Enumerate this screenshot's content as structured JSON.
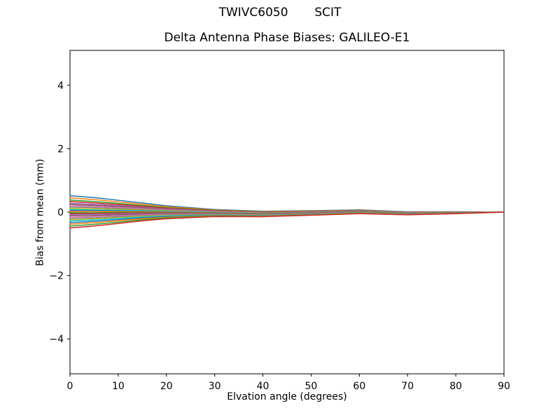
{
  "figure": {
    "suptitle": "TWIVC6050       SCIT",
    "axes_title": "Delta Antenna Phase Biases: GALILEO-E1",
    "xlabel": "Elvation angle (degrees)",
    "ylabel": "Bias from mean (mm)",
    "background_color": "#ffffff",
    "spine_color": "#000000",
    "text_color": "#000000"
  },
  "chart_data": {
    "type": "line",
    "title": "Delta Antenna Phase Biases: GALILEO-E1",
    "suptitle": "TWIVC6050       SCIT",
    "xlabel": "Elvation angle (degrees)",
    "ylabel": "Bias from mean (mm)",
    "xlim": [
      0,
      90
    ],
    "ylim": [
      -5.1,
      5.1
    ],
    "x_ticks": [
      0,
      10,
      20,
      30,
      40,
      50,
      60,
      70,
      80,
      90
    ],
    "y_ticks": [
      -4,
      -2,
      0,
      2,
      4
    ],
    "grid": false,
    "legend": "none",
    "line_width": 1.5,
    "x": [
      0,
      5,
      10,
      15,
      20,
      30,
      40,
      50,
      60,
      70,
      80,
      90
    ],
    "series": [
      {
        "name": "line-01",
        "color": "#1f77b4",
        "values": [
          0.52,
          0.458,
          0.374,
          0.286,
          0.198,
          0.084,
          0.028,
          0.043,
          0.072,
          0.007,
          0.011,
          0
        ]
      },
      {
        "name": "line-02",
        "color": "#ff7f0e",
        "values": [
          0.45,
          0.396,
          0.324,
          0.248,
          0.17,
          0.069,
          0.017,
          0.033,
          0.064,
          0.001,
          0.007,
          0
        ]
      },
      {
        "name": "line-03",
        "color": "#2ca02c",
        "values": [
          0.38,
          0.334,
          0.274,
          0.209,
          0.142,
          0.054,
          0.005,
          0.023,
          0.056,
          -0.006,
          0.003,
          0
        ]
      },
      {
        "name": "line-04",
        "color": "#d62728",
        "values": [
          0.33,
          0.29,
          0.238,
          0.182,
          0.122,
          0.043,
          -0.004,
          0.016,
          0.05,
          -0.01,
          0,
          0
        ]
      },
      {
        "name": "line-05",
        "color": "#9467bd",
        "values": [
          0.28,
          0.246,
          0.202,
          0.154,
          0.102,
          0.032,
          -0.012,
          0.009,
          0.044,
          -0.015,
          -0.003,
          0
        ]
      },
      {
        "name": "line-06",
        "color": "#8c564b",
        "values": [
          0.24,
          0.211,
          0.173,
          0.132,
          0.086,
          0.023,
          -0.019,
          0.004,
          0.039,
          -0.018,
          -0.006,
          0
        ]
      },
      {
        "name": "line-07",
        "color": "#e377c2",
        "values": [
          0.2,
          0.176,
          0.144,
          0.11,
          0.07,
          0.014,
          -0.026,
          -0.002,
          0.034,
          -0.022,
          -0.008,
          0
        ]
      },
      {
        "name": "line-08",
        "color": "#7f7f7f",
        "values": [
          0.16,
          0.141,
          0.115,
          0.088,
          0.054,
          0.005,
          -0.033,
          -0.008,
          0.029,
          -0.026,
          -0.01,
          0
        ]
      },
      {
        "name": "line-09",
        "color": "#bcbd22",
        "values": [
          0.12,
          0.106,
          0.086,
          0.066,
          0.038,
          -0.004,
          -0.04,
          -0.013,
          0.024,
          -0.029,
          -0.013,
          0
        ]
      },
      {
        "name": "line-10",
        "color": "#17becf",
        "values": [
          0.08,
          0.07,
          0.058,
          0.044,
          0.022,
          -0.012,
          -0.046,
          -0.019,
          0.02,
          -0.033,
          -0.015,
          0
        ]
      },
      {
        "name": "line-11",
        "color": "#1f77b4",
        "values": [
          0.05,
          0.044,
          0.036,
          0.028,
          0.01,
          -0.019,
          -0.052,
          -0.023,
          0.016,
          -0.036,
          -0.017,
          0
        ]
      },
      {
        "name": "line-12",
        "color": "#ff7f0e",
        "values": [
          0.02,
          0.018,
          0.014,
          0.011,
          -0.002,
          -0.026,
          -0.057,
          -0.027,
          0.012,
          -0.038,
          -0.019,
          0
        ]
      },
      {
        "name": "line-13",
        "color": "#2ca02c",
        "values": [
          -0.02,
          -0.018,
          -0.014,
          -0.011,
          -0.018,
          -0.034,
          -0.063,
          -0.033,
          0.008,
          -0.042,
          -0.021,
          0
        ]
      },
      {
        "name": "line-14",
        "color": "#d62728",
        "values": [
          -0.05,
          -0.044,
          -0.036,
          -0.028,
          -0.03,
          -0.041,
          -0.069,
          -0.037,
          0.004,
          -0.045,
          -0.023,
          0
        ]
      },
      {
        "name": "line-15",
        "color": "#9467bd",
        "values": [
          -0.08,
          -0.07,
          -0.058,
          -0.044,
          -0.042,
          -0.048,
          -0.074,
          -0.041,
          0,
          -0.047,
          -0.025,
          0
        ]
      },
      {
        "name": "line-16",
        "color": "#8c564b",
        "values": [
          -0.12,
          -0.106,
          -0.086,
          -0.066,
          -0.058,
          -0.056,
          -0.08,
          -0.047,
          -0.004,
          -0.051,
          -0.027,
          0
        ]
      },
      {
        "name": "line-17",
        "color": "#e377c2",
        "values": [
          -0.16,
          -0.141,
          -0.115,
          -0.088,
          -0.074,
          -0.065,
          -0.087,
          -0.052,
          -0.009,
          -0.054,
          -0.03,
          0
        ]
      },
      {
        "name": "line-18",
        "color": "#7f7f7f",
        "values": [
          -0.2,
          -0.176,
          -0.144,
          -0.11,
          -0.09,
          -0.074,
          -0.094,
          -0.058,
          -0.014,
          -0.058,
          -0.032,
          0
        ]
      },
      {
        "name": "line-19",
        "color": "#bcbd22",
        "values": [
          -0.24,
          -0.211,
          -0.173,
          -0.132,
          -0.106,
          -0.083,
          -0.101,
          -0.064,
          -0.019,
          -0.062,
          -0.034,
          0
        ]
      },
      {
        "name": "line-20",
        "color": "#17becf",
        "values": [
          -0.28,
          -0.246,
          -0.202,
          -0.154,
          -0.122,
          -0.092,
          -0.108,
          -0.069,
          -0.024,
          -0.065,
          -0.037,
          0
        ]
      },
      {
        "name": "line-21",
        "color": "#1f77b4",
        "values": [
          -0.33,
          -0.29,
          -0.238,
          -0.182,
          -0.142,
          -0.103,
          -0.116,
          -0.076,
          -0.03,
          -0.07,
          -0.04,
          0
        ]
      },
      {
        "name": "line-22",
        "color": "#ff7f0e",
        "values": [
          -0.38,
          -0.334,
          -0.274,
          -0.209,
          -0.162,
          -0.114,
          -0.125,
          -0.083,
          -0.036,
          -0.074,
          -0.043,
          0
        ]
      },
      {
        "name": "line-23",
        "color": "#2ca02c",
        "values": [
          -0.44,
          -0.387,
          -0.317,
          -0.242,
          -0.186,
          -0.127,
          -0.135,
          -0.092,
          -0.043,
          -0.08,
          -0.046,
          0
        ]
      },
      {
        "name": "line-24",
        "color": "#d62728",
        "values": [
          -0.5,
          -0.44,
          -0.36,
          -0.275,
          -0.21,
          -0.14,
          -0.145,
          -0.1,
          -0.05,
          -0.085,
          -0.05,
          0
        ]
      }
    ]
  }
}
